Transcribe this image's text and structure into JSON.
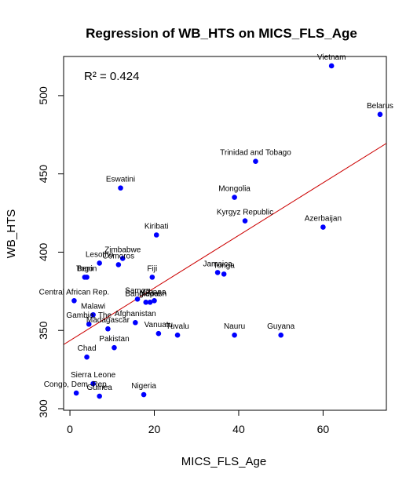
{
  "chart_data": {
    "type": "scatter",
    "title": "Regression of WB_HTS on MICS_FLS_Age",
    "xlabel": "MICS_FLS_Age",
    "ylabel": "WB_HTS",
    "annotation": "R² = 0.424",
    "xlim": [
      -1.5,
      75
    ],
    "ylim": [
      299,
      525
    ],
    "xticks": [
      0,
      20,
      40,
      60
    ],
    "yticks": [
      300,
      350,
      400,
      450,
      500
    ],
    "grid": false,
    "point_color": "#0000ff",
    "line_color": "#cc0000",
    "regression": {
      "intercept": 343.5,
      "slope": 1.68
    },
    "points": [
      {
        "label": "Vietnam",
        "x": 62,
        "y": 519
      },
      {
        "label": "Belarus",
        "x": 73.5,
        "y": 488
      },
      {
        "label": "Trinidad and Tobago",
        "x": 44,
        "y": 458
      },
      {
        "label": "Eswatini",
        "x": 12,
        "y": 441
      },
      {
        "label": "Mongolia",
        "x": 39,
        "y": 435
      },
      {
        "label": "Kyrgyz Republic",
        "x": 41.5,
        "y": 420
      },
      {
        "label": "Azerbaijan",
        "x": 60,
        "y": 416
      },
      {
        "label": "Kiribati",
        "x": 20.5,
        "y": 411
      },
      {
        "label": "Zimbabwe",
        "x": 12.5,
        "y": 396
      },
      {
        "label": "Comoros",
        "x": 11.5,
        "y": 392
      },
      {
        "label": "Lesotho",
        "x": 7,
        "y": 393
      },
      {
        "label": "Togo",
        "x": 3.5,
        "y": 384
      },
      {
        "label": "Benin",
        "x": 4,
        "y": 384
      },
      {
        "label": "Fiji",
        "x": 19.5,
        "y": 384
      },
      {
        "label": "Jamaica",
        "x": 35,
        "y": 387
      },
      {
        "label": "Tonga",
        "x": 36.5,
        "y": 386
      },
      {
        "label": "Samoa",
        "x": 16,
        "y": 370
      },
      {
        "label": "Bangladesh",
        "x": 18,
        "y": 368
      },
      {
        "label": "Nepal",
        "x": 19,
        "y": 368
      },
      {
        "label": "Ghana",
        "x": 20,
        "y": 369
      },
      {
        "label": "Central African Rep.",
        "x": 1,
        "y": 369
      },
      {
        "label": "Malawi",
        "x": 5.5,
        "y": 360
      },
      {
        "label": "Gambia, The",
        "x": 4.5,
        "y": 354
      },
      {
        "label": "Madagascar",
        "x": 9,
        "y": 351
      },
      {
        "label": "Afghanistan",
        "x": 15.5,
        "y": 355
      },
      {
        "label": "Vanuatu",
        "x": 21,
        "y": 348
      },
      {
        "label": "Tuvalu",
        "x": 25.5,
        "y": 347
      },
      {
        "label": "Nauru",
        "x": 39,
        "y": 347
      },
      {
        "label": "Guyana",
        "x": 50,
        "y": 347
      },
      {
        "label": "Pakistan",
        "x": 10.5,
        "y": 339
      },
      {
        "label": "Chad",
        "x": 4,
        "y": 333
      },
      {
        "label": "Sierra Leone",
        "x": 5.5,
        "y": 316
      },
      {
        "label": "Congo, Dem. Rep.",
        "x": 1.5,
        "y": 310
      },
      {
        "label": "Guinea",
        "x": 7,
        "y": 308
      },
      {
        "label": "Nigeria",
        "x": 17.5,
        "y": 309
      }
    ]
  }
}
